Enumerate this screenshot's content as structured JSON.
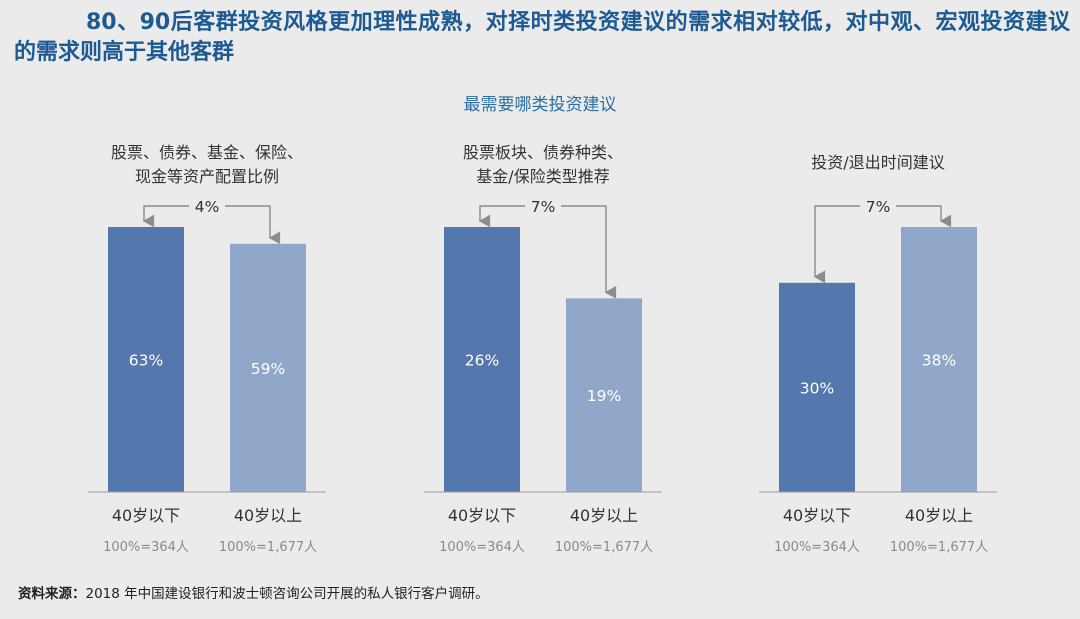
{
  "headline": "80、90后客群投资风格更加理性成熟，对择时类投资建议的需求相对较低，对中观、宏观投资建议的需求则高于其他客群",
  "subtitle": "最需要哪类投资建议",
  "footer": {
    "label": "资料来源：",
    "text": "2018 年中国建设银行和波士顿咨询公司开展的私人银行客户调研。"
  },
  "colors": {
    "under40": "#5478ad",
    "over40": "#91a7c9",
    "headline": "#1d5a92",
    "subtitle": "#2b6ea3",
    "arrow": "#8c8c8c"
  },
  "chart_data": [
    {
      "type": "bar",
      "title_lines": [
        "股票、债券、基金、保险、",
        "现金等资产配置比例"
      ],
      "categories": [
        "40岁以下",
        "40岁以上"
      ],
      "bases": [
        "100%=364人",
        "100%=1,677人"
      ],
      "values": [
        63,
        59
      ],
      "value_labels": [
        "63%",
        "59%"
      ],
      "diff_label": "4%",
      "ylim": [
        0,
        63
      ]
    },
    {
      "type": "bar",
      "title_lines": [
        "股票板块、债券种类、",
        "基金/保险类型推荐"
      ],
      "categories": [
        "40岁以下",
        "40岁以上"
      ],
      "bases": [
        "100%=364人",
        "100%=1,677人"
      ],
      "values": [
        26,
        19
      ],
      "value_labels": [
        "26%",
        "19%"
      ],
      "diff_label": "7%",
      "ylim": [
        0,
        26
      ]
    },
    {
      "type": "bar",
      "title_lines": [
        "投资/退出时间建议"
      ],
      "categories": [
        "40岁以下",
        "40岁以上"
      ],
      "bases": [
        "100%=364人",
        "100%=1,677人"
      ],
      "values": [
        30,
        38
      ],
      "value_labels": [
        "30%",
        "38%"
      ],
      "diff_label": "7%",
      "ylim": [
        0,
        38
      ]
    }
  ]
}
